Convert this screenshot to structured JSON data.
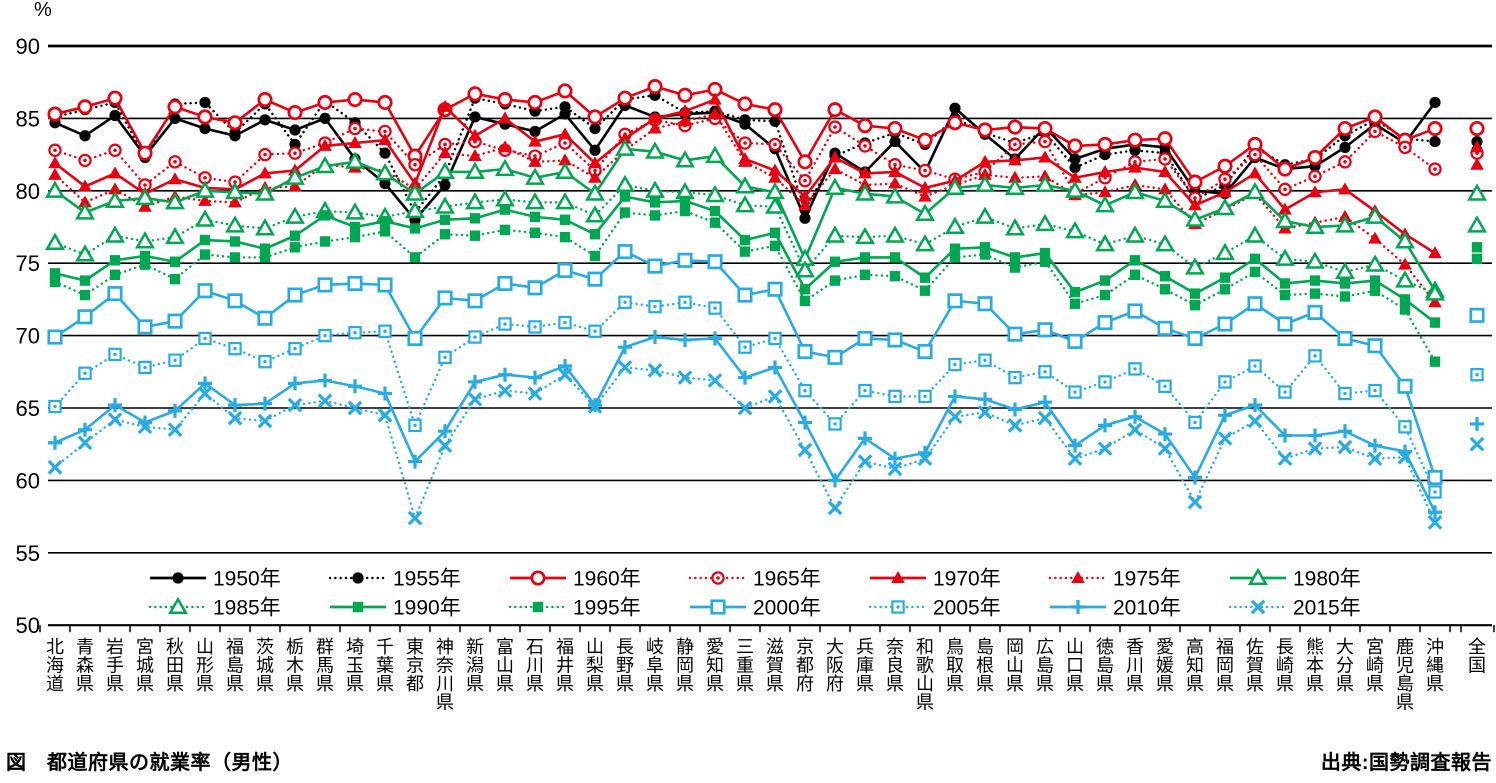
{
  "caption": {
    "title": "図　都道府県の就業率（男性）",
    "source": "出典:国勢調査報告"
  },
  "chart_data": {
    "type": "line",
    "title": "図 都道府県の就業率（男性）",
    "ylabel": "%",
    "xlabel": "",
    "ylim": [
      50,
      90
    ],
    "ytick_step": 5,
    "yticks": [
      90,
      85,
      80,
      75,
      70,
      65,
      60,
      55,
      50
    ],
    "grid": true,
    "legend_position": "bottom",
    "legend_rows": [
      7,
      7
    ],
    "colors": {
      "black": "#000000",
      "red": "#e60012",
      "green": "#00a651",
      "blue": "#29abe2"
    },
    "categories": [
      "北海道",
      "青森県",
      "岩手県",
      "宮城県",
      "秋田県",
      "山形県",
      "福島県",
      "茨城県",
      "栃木県",
      "群馬県",
      "埼玉県",
      "千葉県",
      "東京都",
      "神奈川県",
      "新潟県",
      "富山県",
      "石川県",
      "福井県",
      "山梨県",
      "長野県",
      "岐阜県",
      "静岡県",
      "愛知県",
      "三重県",
      "滋賀県",
      "京都府",
      "大阪府",
      "兵庫県",
      "奈良県",
      "和歌山県",
      "鳥取県",
      "島根県",
      "岡山県",
      "広島県",
      "山口県",
      "徳島県",
      "香川県",
      "愛媛県",
      "高知県",
      "福岡県",
      "佐賀県",
      "長崎県",
      "熊本県",
      "大分県",
      "宮崎県",
      "鹿児島県",
      "沖縄県",
      "全国"
    ],
    "series": [
      {
        "name": "1950年",
        "color": "#000000",
        "line": "solid",
        "marker": "filled-circle",
        "values": [
          84.7,
          83.8,
          85.2,
          82.4,
          85.0,
          84.3,
          83.8,
          84.9,
          84.2,
          85.0,
          82.2,
          80.5,
          78.0,
          80.4,
          85.1,
          84.6,
          84.1,
          85.3,
          82.8,
          85.9,
          85.1,
          85.3,
          85.4,
          84.6,
          82.9,
          78.1,
          82.6,
          81.3,
          83.4,
          81.3,
          85.7,
          83.9,
          82.2,
          84.4,
          82.2,
          82.9,
          83.2,
          83.0,
          80.0,
          79.8,
          82.3,
          81.5,
          81.7,
          83.0,
          84.6,
          83.3,
          86.1,
          82.8
        ]
      },
      {
        "name": "1955年",
        "color": "#000000",
        "line": "dotted",
        "marker": "filled-circle",
        "values": [
          85.1,
          85.6,
          86.1,
          82.3,
          86.0,
          86.1,
          84.0,
          86.0,
          83.2,
          86.2,
          84.7,
          82.6,
          78.5,
          81.1,
          86.4,
          86.0,
          85.5,
          85.8,
          84.3,
          86.3,
          86.6,
          85.4,
          85.5,
          84.9,
          84.8,
          78.7,
          82.4,
          83.3,
          84.0,
          83.2,
          85.0,
          84.0,
          83.3,
          84.0,
          81.6,
          82.5,
          82.8,
          82.6,
          79.4,
          80.4,
          83.0,
          81.8,
          82.2,
          83.8,
          84.9,
          83.6,
          83.4,
          83.4
        ]
      },
      {
        "name": "1960年",
        "color": "#e60012",
        "line": "solid",
        "marker": "open-circle",
        "values": [
          85.3,
          85.8,
          86.4,
          82.6,
          85.8,
          85.1,
          84.7,
          86.3,
          85.4,
          86.1,
          86.3,
          86.1,
          82.4,
          85.6,
          86.7,
          86.3,
          86.1,
          86.9,
          85.1,
          86.4,
          87.2,
          86.6,
          87.0,
          86.0,
          85.6,
          82.0,
          85.6,
          84.5,
          84.3,
          83.5,
          84.7,
          84.2,
          84.4,
          84.3,
          83.1,
          83.2,
          83.5,
          83.6,
          80.6,
          81.7,
          83.2,
          81.5,
          82.3,
          84.3,
          85.1,
          83.5,
          84.3,
          84.3
        ]
      },
      {
        "name": "1965年",
        "color": "#e60012",
        "line": "dotted",
        "marker": "circle-dot",
        "values": [
          82.8,
          82.1,
          82.8,
          80.4,
          82.0,
          80.9,
          80.6,
          82.5,
          82.6,
          83.3,
          84.3,
          84.1,
          81.8,
          83.2,
          83.4,
          82.8,
          82.4,
          83.3,
          81.4,
          83.9,
          84.9,
          84.5,
          85.0,
          83.3,
          83.2,
          80.7,
          84.4,
          83.1,
          81.8,
          81.4,
          80.8,
          81.3,
          83.2,
          83.4,
          79.8,
          80.9,
          82.0,
          82.2,
          79.5,
          80.8,
          82.5,
          80.1,
          81.0,
          82.0,
          84.1,
          83.0,
          81.5,
          82.6
        ]
      },
      {
        "name": "1970年",
        "color": "#e60012",
        "line": "solid",
        "marker": "filled-triangle",
        "values": [
          81.9,
          80.3,
          81.2,
          79.8,
          80.8,
          80.2,
          80.1,
          81.2,
          81.4,
          83.1,
          83.3,
          83.5,
          80.5,
          85.8,
          83.8,
          85.0,
          83.4,
          83.9,
          81.9,
          83.6,
          85.0,
          85.5,
          86.3,
          82.2,
          81.4,
          79.6,
          82.3,
          81.2,
          81.3,
          80.2,
          80.7,
          82.0,
          82.1,
          82.3,
          80.9,
          81.3,
          81.6,
          81.3,
          79.0,
          79.9,
          81.2,
          78.7,
          79.9,
          80.1,
          78.6,
          77.0,
          75.7,
          83.0
        ]
      },
      {
        "name": "1975年",
        "color": "#e60012",
        "line": "dotted",
        "marker": "filled-triangle",
        "values": [
          81.1,
          79.2,
          80.1,
          78.9,
          79.6,
          79.3,
          79.2,
          80.2,
          80.3,
          81.8,
          81.6,
          81.4,
          80.1,
          82.6,
          82.4,
          83.0,
          82.0,
          82.1,
          80.9,
          82.8,
          84.3,
          84.8,
          85.3,
          82.0,
          80.9,
          79.0,
          81.5,
          80.4,
          80.5,
          79.6,
          80.4,
          81.1,
          80.9,
          81.0,
          79.7,
          79.9,
          80.4,
          80.1,
          77.7,
          78.7,
          79.8,
          77.4,
          77.8,
          78.2,
          76.7,
          74.9,
          72.3,
          81.8
        ]
      },
      {
        "name": "1980年",
        "color": "#00a651",
        "line": "solid",
        "marker": "open-triangle",
        "values": [
          80.0,
          78.5,
          79.3,
          79.5,
          79.2,
          80.0,
          79.9,
          79.8,
          80.9,
          81.7,
          82.0,
          81.2,
          79.8,
          81.3,
          81.3,
          81.5,
          80.9,
          81.3,
          79.8,
          82.9,
          82.7,
          82.1,
          82.4,
          80.3,
          79.9,
          75.3,
          80.2,
          79.8,
          79.6,
          78.4,
          80.2,
          80.4,
          80.2,
          80.4,
          80.0,
          79.0,
          79.9,
          79.3,
          78.0,
          78.8,
          79.9,
          77.9,
          77.5,
          77.6,
          78.2,
          76.5,
          73.1,
          79.8
        ]
      },
      {
        "name": "1985年",
        "color": "#00a651",
        "line": "dotted",
        "marker": "open-triangle",
        "values": [
          76.4,
          75.6,
          76.9,
          76.5,
          76.8,
          78.0,
          77.6,
          77.4,
          78.2,
          78.6,
          78.5,
          78.2,
          78.6,
          78.9,
          79.2,
          79.4,
          79.2,
          79.2,
          78.3,
          80.4,
          80.0,
          79.9,
          79.7,
          79.0,
          78.9,
          74.5,
          76.9,
          76.8,
          76.9,
          76.3,
          77.5,
          78.2,
          77.4,
          77.7,
          77.2,
          76.3,
          76.9,
          76.3,
          74.7,
          75.7,
          76.9,
          75.3,
          75.1,
          74.4,
          74.9,
          73.8,
          72.9,
          77.6
        ]
      },
      {
        "name": "1990年",
        "color": "#00a651",
        "line": "solid",
        "marker": "filled-square",
        "values": [
          74.3,
          73.8,
          75.2,
          75.5,
          75.1,
          76.6,
          76.5,
          76.0,
          76.9,
          78.3,
          77.5,
          77.9,
          77.4,
          78.0,
          78.1,
          78.7,
          78.2,
          78.0,
          77.0,
          79.6,
          79.2,
          79.3,
          78.6,
          76.6,
          77.1,
          73.2,
          75.1,
          75.4,
          75.4,
          74.0,
          76.0,
          76.1,
          75.4,
          75.7,
          73.0,
          73.8,
          75.2,
          74.1,
          72.9,
          74.0,
          75.3,
          73.6,
          73.8,
          73.6,
          73.8,
          72.5,
          70.9,
          76.1
        ]
      },
      {
        "name": "1995年",
        "color": "#00a651",
        "line": "dotted",
        "marker": "filled-square",
        "values": [
          73.7,
          72.8,
          74.2,
          74.9,
          73.9,
          75.6,
          75.4,
          75.4,
          76.1,
          76.5,
          76.8,
          77.2,
          75.4,
          77.0,
          76.9,
          77.3,
          77.1,
          76.8,
          75.5,
          78.5,
          78.3,
          78.6,
          77.8,
          75.8,
          76.2,
          72.4,
          73.8,
          74.2,
          74.1,
          73.1,
          75.4,
          75.6,
          74.7,
          75.1,
          72.2,
          72.8,
          74.2,
          73.2,
          72.1,
          73.2,
          74.4,
          72.8,
          72.9,
          72.7,
          73.1,
          71.8,
          68.2,
          75.3
        ]
      },
      {
        "name": "2000年",
        "color": "#29abe2",
        "line": "solid",
        "marker": "open-square",
        "values": [
          69.9,
          71.3,
          72.9,
          70.6,
          71.0,
          73.1,
          72.4,
          71.2,
          72.8,
          73.5,
          73.6,
          73.5,
          69.8,
          72.6,
          72.4,
          73.6,
          73.3,
          74.5,
          73.9,
          75.8,
          74.8,
          75.2,
          75.1,
          72.8,
          73.2,
          68.9,
          68.5,
          69.8,
          69.7,
          68.9,
          72.4,
          72.2,
          70.1,
          70.4,
          69.6,
          70.9,
          71.7,
          70.5,
          69.8,
          70.8,
          72.2,
          70.8,
          71.6,
          69.8,
          69.3,
          66.5,
          60.2,
          71.4
        ]
      },
      {
        "name": "2005年",
        "color": "#29abe2",
        "line": "dotted",
        "marker": "square-dot",
        "values": [
          65.1,
          67.4,
          68.7,
          67.8,
          68.3,
          69.8,
          69.1,
          68.2,
          69.1,
          70.0,
          70.2,
          70.3,
          63.8,
          68.5,
          69.9,
          70.8,
          70.6,
          70.9,
          70.3,
          72.3,
          72.0,
          72.3,
          71.9,
          69.2,
          69.8,
          66.2,
          63.9,
          66.2,
          65.8,
          65.8,
          68.0,
          68.3,
          67.1,
          67.5,
          66.1,
          66.8,
          67.7,
          66.5,
          64.0,
          66.8,
          67.9,
          66.1,
          68.6,
          66.0,
          66.2,
          63.7,
          59.2,
          67.3
        ]
      },
      {
        "name": "2010年",
        "color": "#29abe2",
        "line": "solid",
        "marker": "plus",
        "values": [
          62.6,
          63.5,
          65.2,
          64.0,
          64.8,
          66.7,
          65.2,
          65.3,
          66.7,
          66.9,
          66.5,
          66.0,
          61.3,
          63.4,
          66.8,
          67.3,
          67.1,
          67.9,
          65.2,
          69.2,
          69.9,
          69.7,
          69.8,
          67.1,
          67.8,
          64.0,
          60.0,
          62.9,
          61.5,
          61.9,
          65.8,
          65.6,
          64.9,
          65.4,
          62.4,
          63.8,
          64.4,
          63.2,
          60.2,
          64.5,
          65.2,
          63.1,
          63.1,
          63.4,
          62.4,
          62.0,
          57.8,
          63.9
        ]
      },
      {
        "name": "2015年",
        "color": "#29abe2",
        "line": "dotted",
        "marker": "cross",
        "values": [
          60.9,
          62.6,
          64.2,
          63.7,
          63.5,
          66.0,
          64.3,
          64.1,
          65.2,
          65.5,
          65.0,
          64.5,
          57.4,
          62.4,
          65.6,
          66.2,
          66.0,
          67.3,
          65.1,
          67.8,
          67.6,
          67.1,
          66.9,
          65.0,
          65.8,
          62.1,
          58.1,
          61.3,
          60.8,
          61.5,
          64.4,
          64.7,
          63.8,
          64.3,
          61.5,
          62.2,
          63.5,
          62.2,
          58.5,
          62.9,
          64.1,
          61.5,
          62.2,
          62.3,
          61.5,
          61.6,
          57.1,
          62.5
        ]
      }
    ]
  }
}
